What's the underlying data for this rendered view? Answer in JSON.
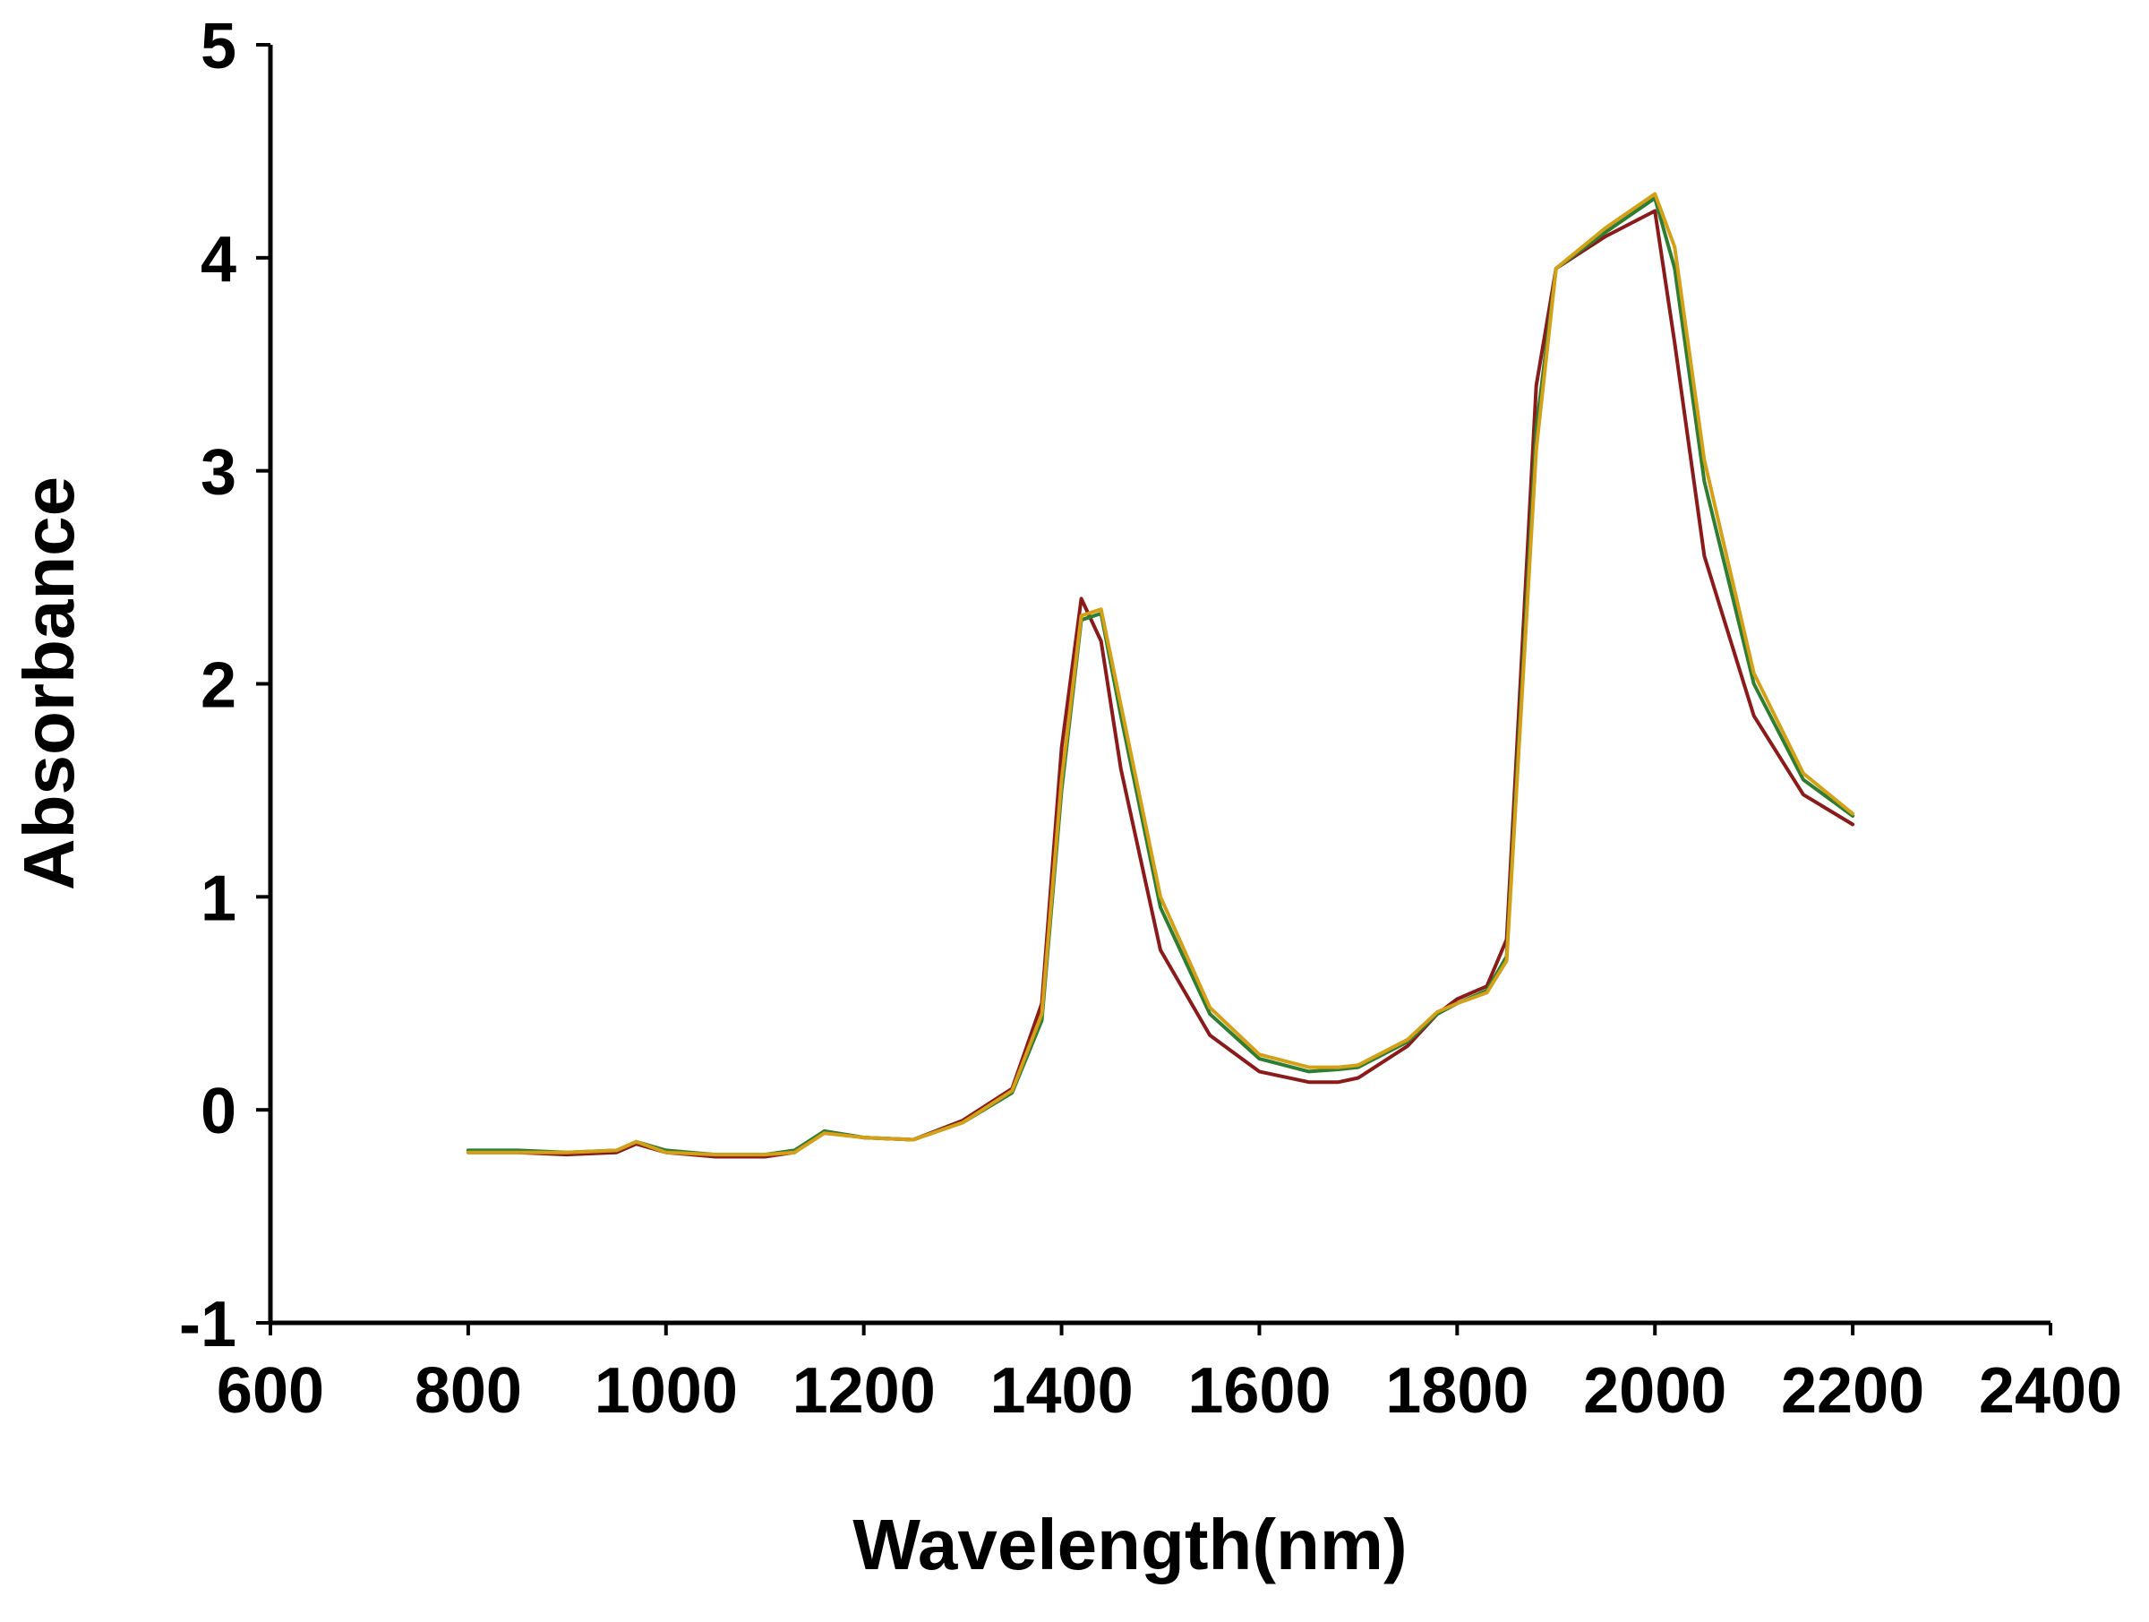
{
  "chart_data": {
    "type": "line",
    "title": "",
    "xlabel": "Wavelength(nm)",
    "ylabel": "Absorbance",
    "xlim": [
      600,
      2400
    ],
    "ylim": [
      -1,
      5
    ],
    "xticks": [
      600,
      800,
      1000,
      1200,
      1400,
      1600,
      1800,
      2000,
      2200,
      2400
    ],
    "yticks": [
      -1,
      0,
      1,
      2,
      3,
      4,
      5
    ],
    "xtick_labels": [
      "600",
      "800",
      "1000",
      "1200",
      "1400",
      "1600",
      "1800",
      "2000",
      "2200",
      "2400"
    ],
    "ytick_labels": [
      "-1",
      "0",
      "1",
      "2",
      "3",
      "4",
      "5"
    ],
    "grid": false,
    "legend": "none",
    "x": [
      800,
      850,
      900,
      950,
      970,
      1000,
      1050,
      1100,
      1130,
      1160,
      1200,
      1250,
      1300,
      1350,
      1380,
      1400,
      1420,
      1440,
      1460,
      1500,
      1550,
      1600,
      1650,
      1680,
      1700,
      1750,
      1780,
      1800,
      1830,
      1850,
      1880,
      1900,
      1950,
      2000,
      2020,
      2050,
      2100,
      2150,
      2200
    ],
    "series": [
      {
        "color": "#8b1a1a",
        "values": [
          -0.2,
          -0.2,
          -0.21,
          -0.2,
          -0.16,
          -0.2,
          -0.22,
          -0.22,
          -0.2,
          -0.1,
          -0.13,
          -0.14,
          -0.05,
          0.1,
          0.5,
          1.7,
          2.4,
          2.2,
          1.6,
          0.75,
          0.35,
          0.18,
          0.13,
          0.13,
          0.15,
          0.3,
          0.45,
          0.52,
          0.58,
          0.8,
          3.4,
          3.95,
          4.1,
          4.22,
          3.6,
          2.6,
          1.85,
          1.48,
          1.34
        ]
      },
      {
        "color": "#2e7d32",
        "values": [
          -0.19,
          -0.19,
          -0.2,
          -0.19,
          -0.15,
          -0.19,
          -0.21,
          -0.21,
          -0.19,
          -0.1,
          -0.13,
          -0.14,
          -0.06,
          0.08,
          0.42,
          1.5,
          2.3,
          2.33,
          1.85,
          0.95,
          0.45,
          0.24,
          0.18,
          0.19,
          0.2,
          0.32,
          0.45,
          0.5,
          0.56,
          0.72,
          3.2,
          3.95,
          4.12,
          4.28,
          3.95,
          2.95,
          2.0,
          1.55,
          1.38
        ]
      },
      {
        "color": "#d4a017",
        "values": [
          -0.2,
          -0.2,
          -0.2,
          -0.19,
          -0.15,
          -0.2,
          -0.21,
          -0.21,
          -0.2,
          -0.11,
          -0.13,
          -0.14,
          -0.06,
          0.09,
          0.45,
          1.55,
          2.32,
          2.35,
          1.9,
          1.0,
          0.48,
          0.26,
          0.2,
          0.2,
          0.21,
          0.33,
          0.46,
          0.5,
          0.55,
          0.7,
          3.1,
          3.95,
          4.14,
          4.3,
          4.05,
          3.05,
          2.05,
          1.58,
          1.39
        ]
      }
    ]
  }
}
